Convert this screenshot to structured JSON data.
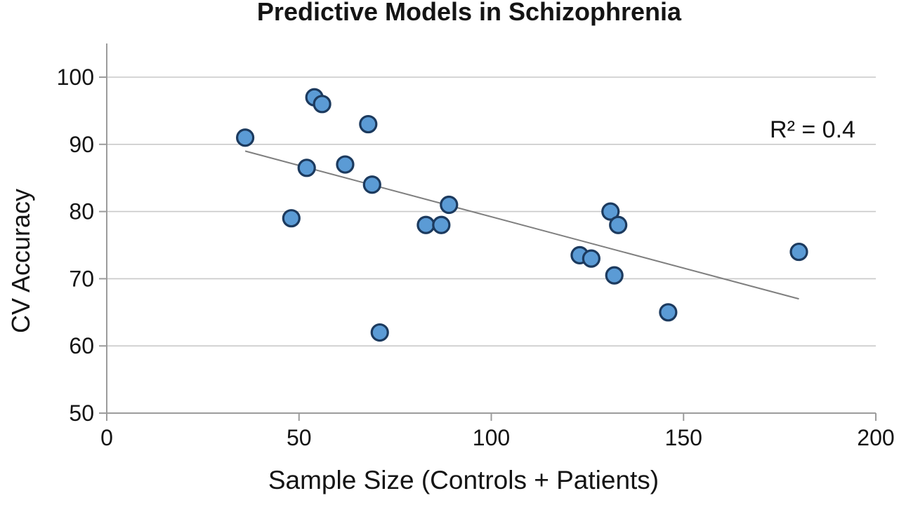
{
  "page": {
    "background": "#ffffff"
  },
  "chart_data": {
    "type": "scatter",
    "title": "Predictive Models in Schizophrenia",
    "xlabel": "Sample Size (Controls + Patients)",
    "ylabel": "CV Accuracy",
    "annotation": "R² = 0.4",
    "xlim": [
      0,
      200
    ],
    "ylim": [
      50,
      100
    ],
    "x_ticks": [
      0,
      50,
      100,
      150,
      200
    ],
    "y_ticks": [
      50,
      60,
      70,
      80,
      90,
      100
    ],
    "grid": "horizontal",
    "legend": "none",
    "points": [
      [
        36,
        91
      ],
      [
        48,
        79
      ],
      [
        52,
        86.5
      ],
      [
        54,
        97
      ],
      [
        56,
        96
      ],
      [
        62,
        87
      ],
      [
        68,
        93
      ],
      [
        69,
        84
      ],
      [
        71,
        62
      ],
      [
        83,
        78
      ],
      [
        87,
        78
      ],
      [
        89,
        81
      ],
      [
        123,
        73.5
      ],
      [
        126,
        73
      ],
      [
        131,
        80
      ],
      [
        132,
        70.5
      ],
      [
        133,
        78
      ],
      [
        146,
        65
      ],
      [
        180,
        74
      ]
    ],
    "trendline": {
      "x1": 36,
      "y1": 89,
      "x2": 180,
      "y2": 67
    },
    "colors": {
      "marker_fill": "#5b9bd5",
      "marker_stroke": "#1c3a5e",
      "gridline": "#c9c9c9",
      "axis": "#9c9c9c",
      "trendline": "#7f7f7f",
      "text": "#141414"
    }
  }
}
